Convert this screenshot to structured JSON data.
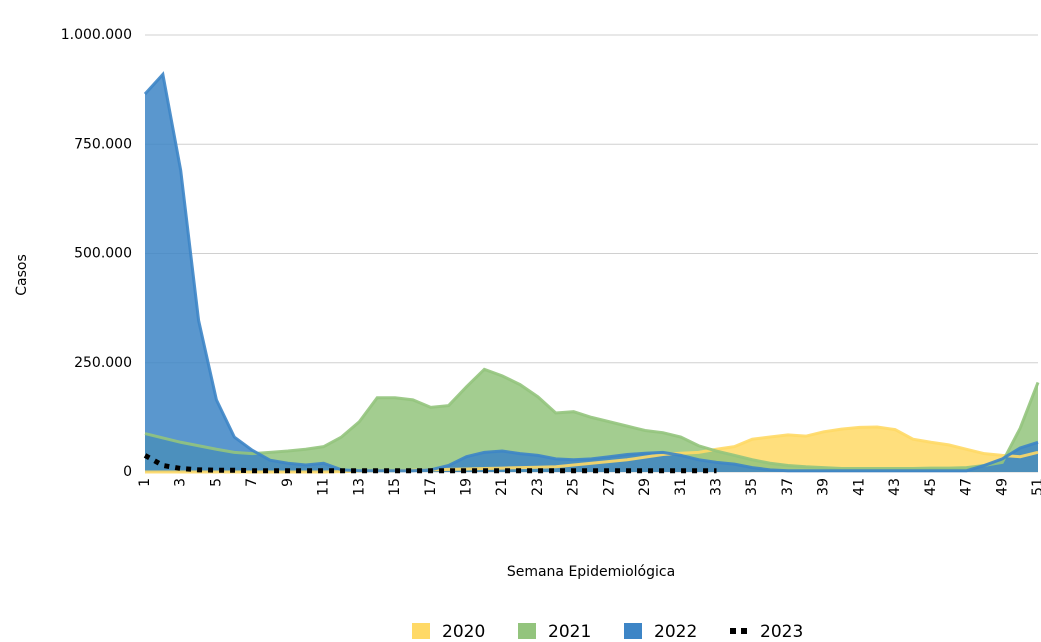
{
  "chart_data": {
    "type": "area",
    "y_label": "Casos",
    "x_label": "Semana Epidemiológica",
    "categories": [
      "1",
      null,
      "3",
      null,
      "5",
      null,
      "7",
      null,
      "9",
      null,
      "11",
      null,
      "13",
      null,
      "15",
      null,
      "17",
      null,
      "19",
      null,
      "21",
      null,
      "23",
      null,
      "25",
      null,
      "27",
      null,
      "29",
      null,
      "31",
      null,
      "33",
      null,
      "35",
      null,
      "37",
      null,
      "39",
      null,
      "41",
      null,
      "43",
      null,
      "45",
      null,
      "47",
      null,
      "49",
      null,
      "51"
    ],
    "ylim": [
      0,
      1000000
    ],
    "yticks": [
      0,
      {
        "value": 250000,
        "label": "250.000"
      },
      {
        "value": 500000,
        "label": "500.000"
      },
      {
        "value": 750000,
        "label": "750.000"
      },
      {
        "value": 1000000,
        "label": "1.000.000"
      }
    ],
    "grid": true,
    "legend": "bottom",
    "series": [
      {
        "name": "2020",
        "color": "#ffd966",
        "style": "area",
        "values": [
          0,
          0,
          0,
          0,
          0,
          0,
          0,
          0,
          0,
          0,
          0,
          1000,
          2000,
          3000,
          3000,
          4000,
          5000,
          6000,
          7000,
          8000,
          9000,
          10000,
          11000,
          12000,
          16000,
          20000,
          24000,
          28000,
          34000,
          40000,
          43000,
          45000,
          52000,
          58000,
          75000,
          80000,
          85000,
          82000,
          92000,
          98000,
          102000,
          103000,
          97000,
          75000,
          68000,
          62000,
          52000,
          42000,
          38000,
          35000,
          45000
        ]
      },
      {
        "name": "2021",
        "color": "#93c47d",
        "style": "area",
        "values": [
          88000,
          78000,
          68000,
          60000,
          52000,
          45000,
          42000,
          45000,
          48000,
          52000,
          58000,
          80000,
          115000,
          170000,
          170000,
          165000,
          148000,
          152000,
          195000,
          235000,
          220000,
          200000,
          172000,
          135000,
          138000,
          125000,
          115000,
          105000,
          95000,
          90000,
          80000,
          60000,
          48000,
          38000,
          28000,
          20000,
          15000,
          12000,
          10000,
          8000,
          8000,
          8000,
          8000,
          8000,
          9000,
          9000,
          10000,
          15000,
          22000,
          100000,
          205000
        ]
      },
      {
        "name": "2022",
        "color": "#3d85c6",
        "style": "area",
        "values": [
          865000,
          910000,
          690000,
          347000,
          165000,
          80000,
          50000,
          27000,
          20000,
          16000,
          20000,
          5000,
          3000,
          3000,
          3000,
          3000,
          5000,
          15000,
          35000,
          45000,
          48000,
          42000,
          38000,
          30000,
          28000,
          30000,
          35000,
          40000,
          43000,
          45000,
          38000,
          28000,
          22000,
          18000,
          10000,
          5000,
          3000,
          3000,
          3000,
          3000,
          3000,
          3000,
          3000,
          3000,
          3000,
          3000,
          3000,
          15000,
          30000,
          55000,
          68000
        ]
      },
      {
        "name": "2023",
        "color": "#000000",
        "style": "dotted",
        "values": [
          38000,
          15000,
          8000,
          5000,
          4000,
          4000,
          3000,
          3000,
          3000,
          3000,
          3000,
          3000,
          3000,
          3000,
          3000,
          3000,
          3000,
          3000,
          3000,
          3000,
          3000,
          3000,
          3000,
          3000,
          3000,
          3000,
          3000,
          3000,
          3000,
          3000,
          3000,
          3000,
          3000,
          null,
          null,
          null,
          null,
          null,
          null,
          null,
          null,
          null,
          null,
          null,
          null,
          null,
          null,
          null,
          null,
          null,
          null
        ]
      }
    ]
  }
}
